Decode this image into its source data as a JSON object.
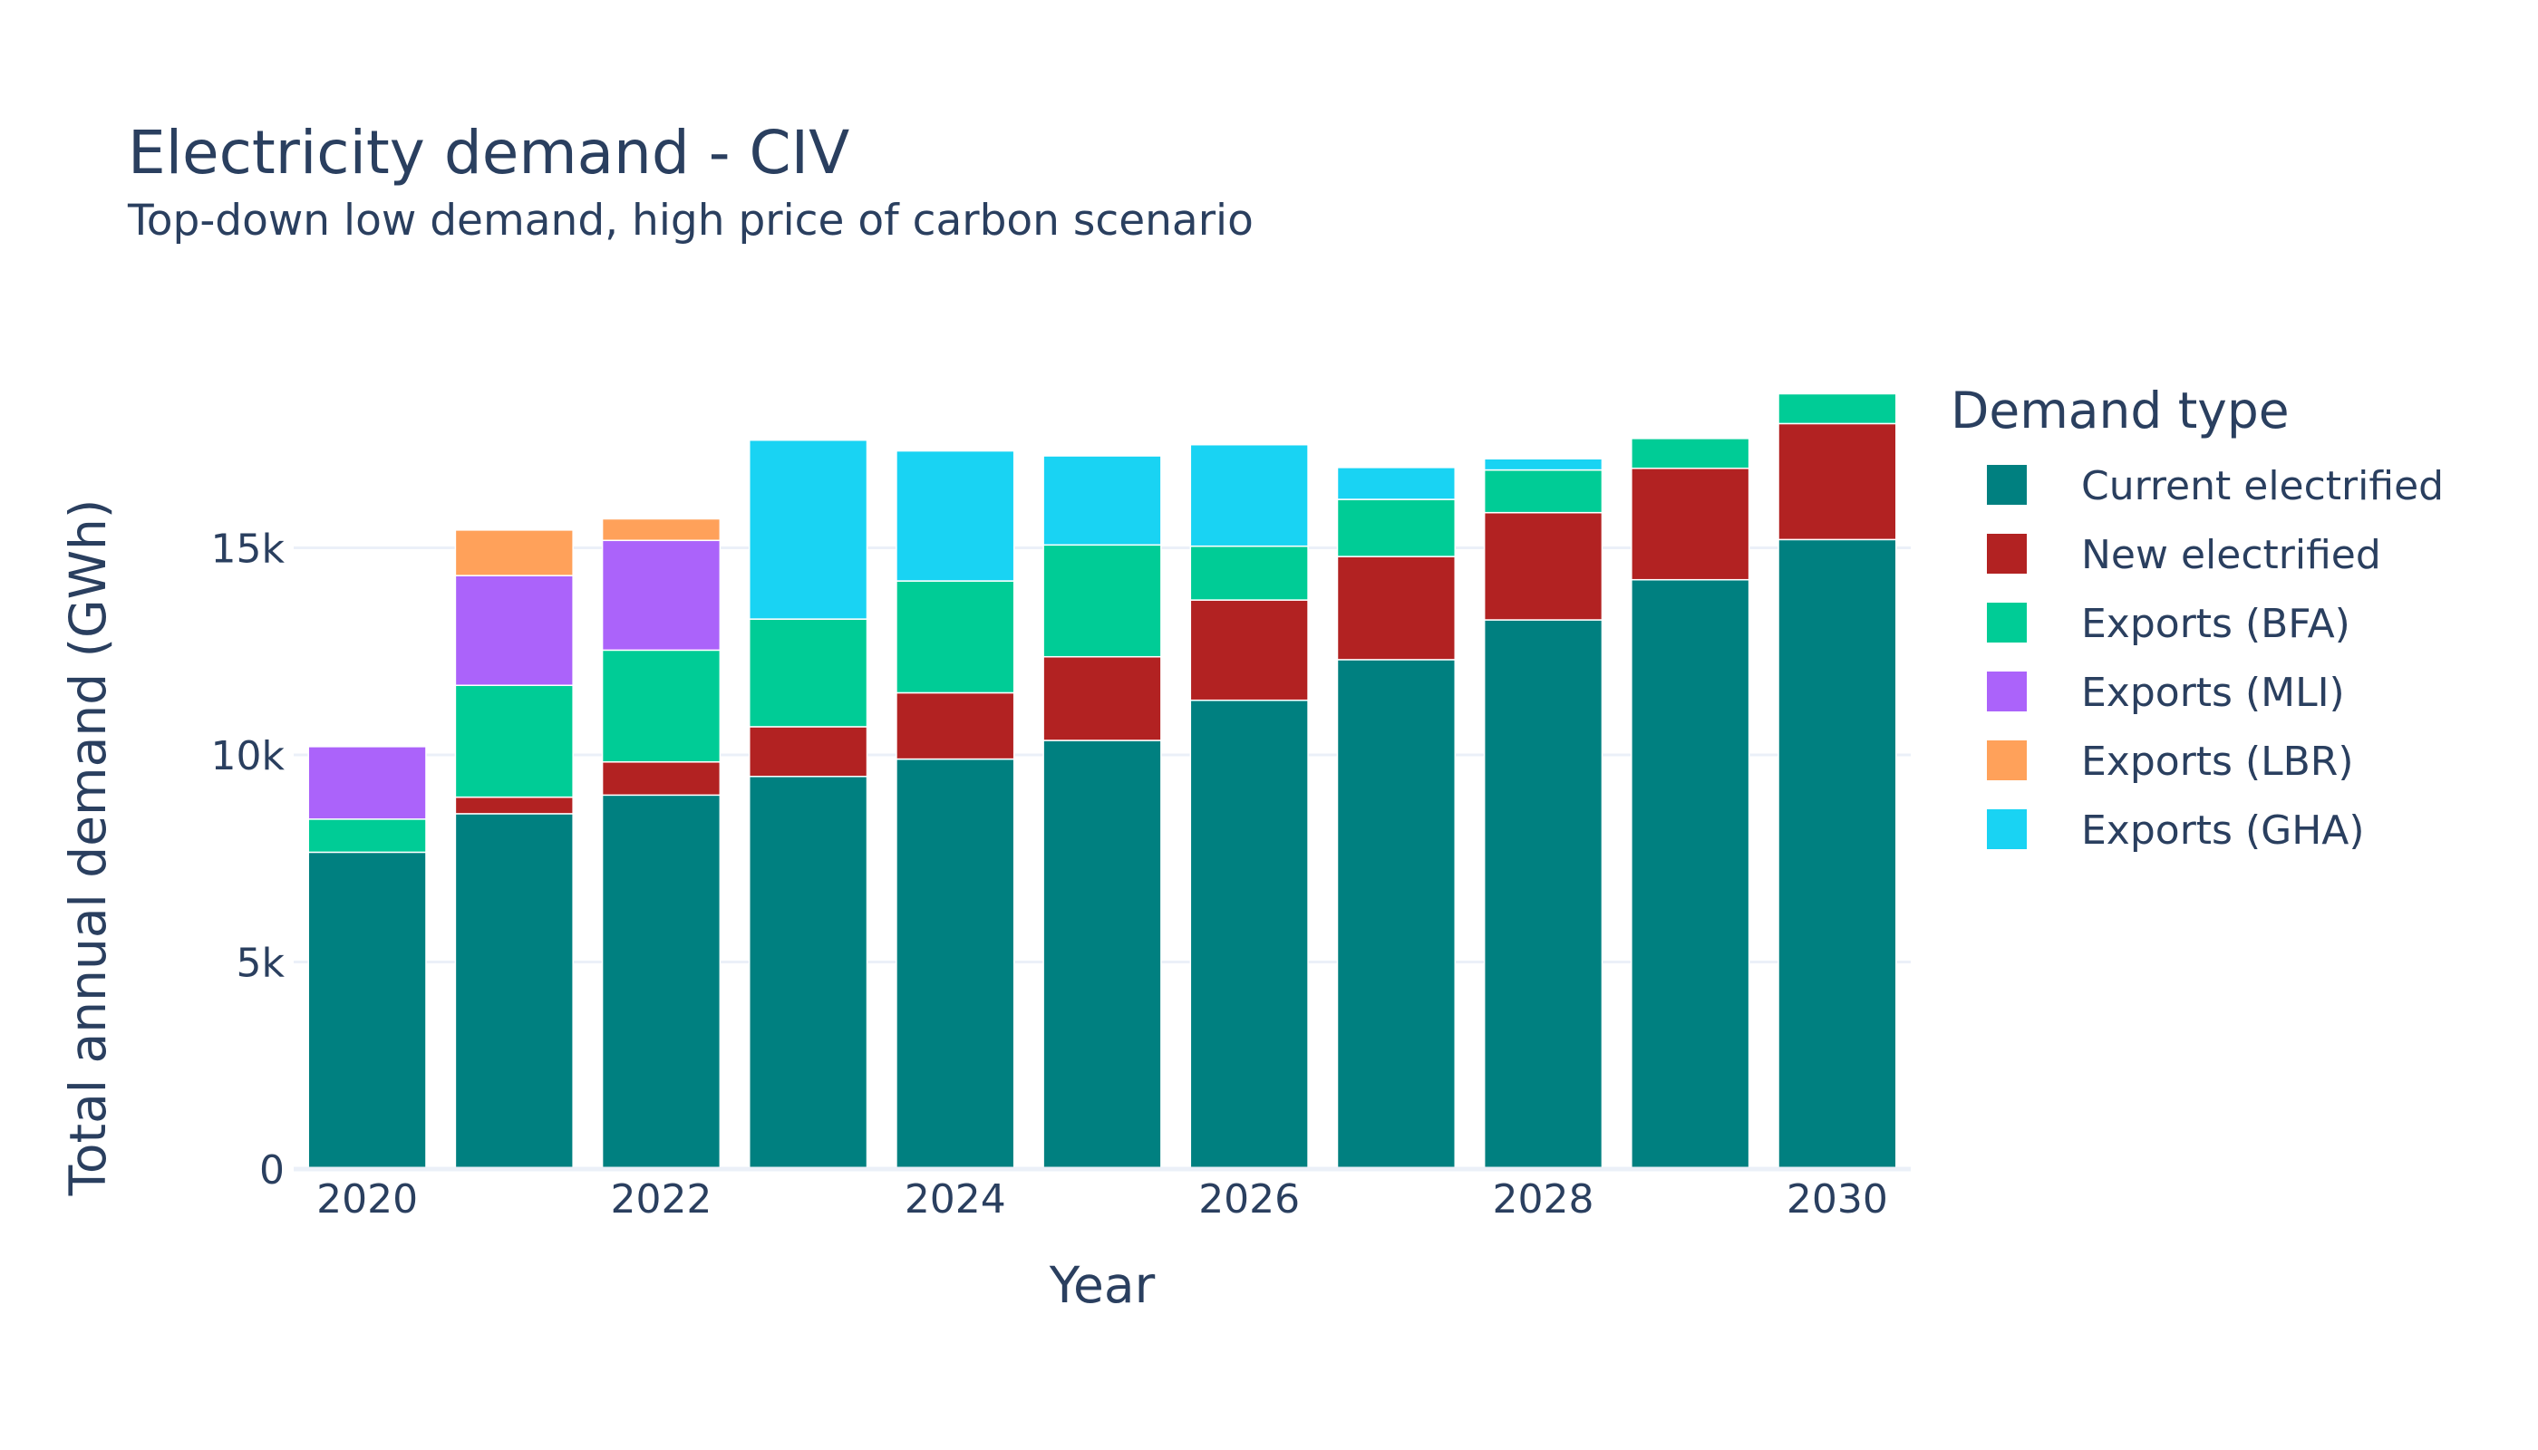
{
  "title": "Electricity demand - CIV",
  "subtitle": "Top-down low demand, high price of carbon scenario",
  "chart_data": {
    "type": "bar",
    "stacked": true,
    "title": "Electricity demand - CIV",
    "subtitle": "Top-down low demand, high price of carbon scenario",
    "xlabel": "Year",
    "ylabel": "Total annual demand (GWh)",
    "x": [
      2020,
      2021,
      2022,
      2023,
      2024,
      2025,
      2026,
      2027,
      2028,
      2029,
      2030
    ],
    "x_ticks": [
      "2020",
      "2022",
      "2024",
      "2026",
      "2028",
      "2030"
    ],
    "x_tick_values": [
      2020,
      2022,
      2024,
      2026,
      2028,
      2030
    ],
    "y_ticks": [
      "0",
      "5k",
      "10k",
      "15k"
    ],
    "y_tick_values": [
      0,
      5000,
      10000,
      15000
    ],
    "ylim": [
      0,
      19300
    ],
    "grid": true,
    "legend_title": "Demand type",
    "legend_position": "right",
    "series": [
      {
        "name": "Current electrified",
        "color": "#008080",
        "values": [
          7650,
          8580,
          9030,
          9480,
          9900,
          10350,
          11320,
          12300,
          13260,
          14230,
          15200
        ]
      },
      {
        "name": "New electrified",
        "color": "#b22222",
        "values": [
          0,
          400,
          800,
          1200,
          1600,
          2020,
          2420,
          2490,
          2590,
          2690,
          2800
        ]
      },
      {
        "name": "Exports (BFA)",
        "color": "#00cc96",
        "values": [
          800,
          2700,
          2700,
          2600,
          2700,
          2700,
          1300,
          1380,
          1030,
          720,
          720
        ]
      },
      {
        "name": "Exports (MLI)",
        "color": "#ab63fa",
        "values": [
          1750,
          2650,
          2650,
          0,
          0,
          0,
          0,
          0,
          0,
          0,
          0
        ]
      },
      {
        "name": "Exports (LBR)",
        "color": "#ffa15a",
        "values": [
          0,
          1100,
          520,
          0,
          0,
          0,
          0,
          0,
          0,
          0,
          0
        ]
      },
      {
        "name": "Exports (GHA)",
        "color": "#19d3f3",
        "values": [
          0,
          0,
          0,
          4320,
          3140,
          2150,
          2450,
          770,
          270,
          0,
          0
        ]
      }
    ]
  }
}
